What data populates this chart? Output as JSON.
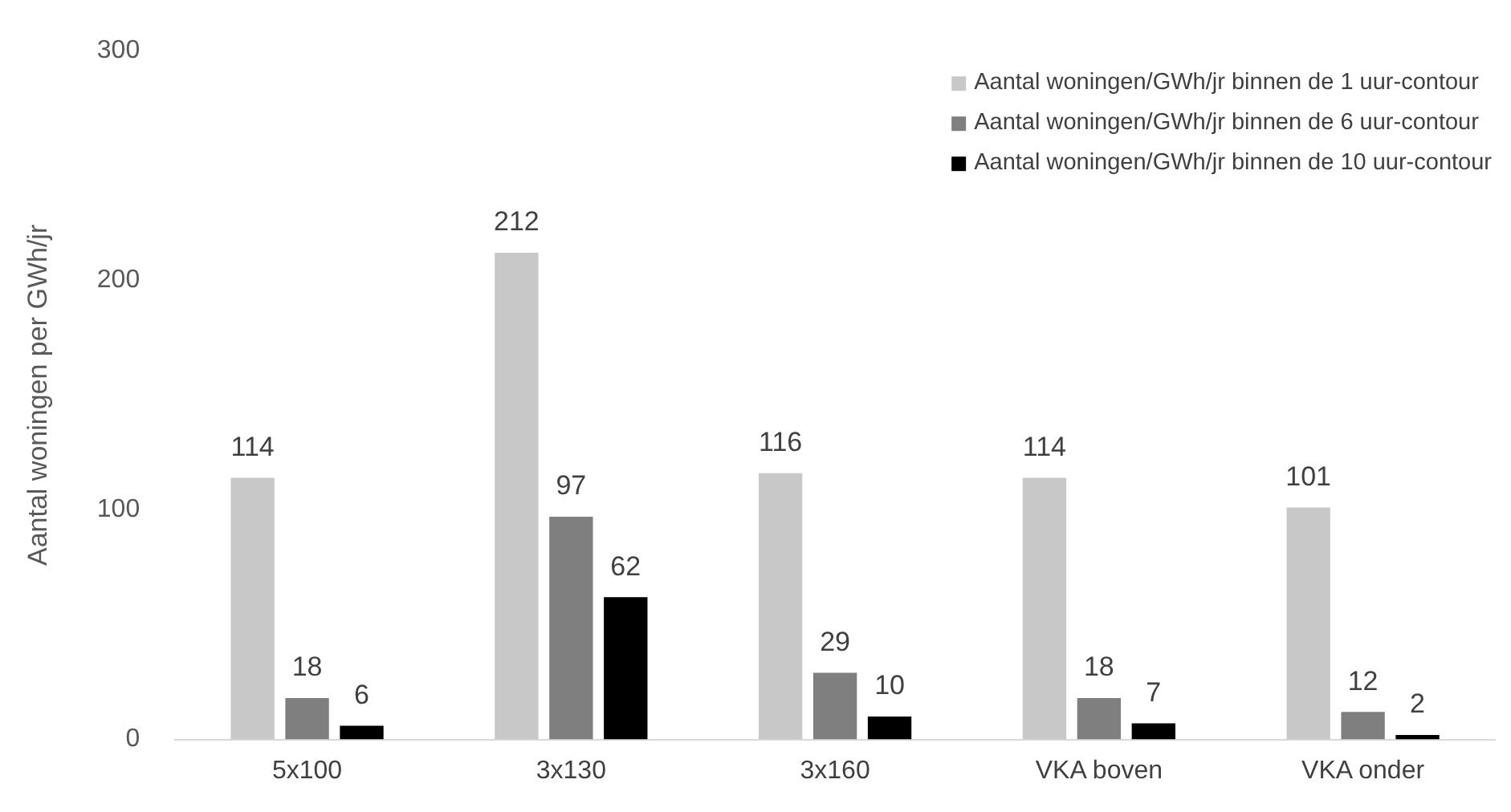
{
  "chart_data": {
    "type": "bar",
    "ylabel": "Aantal woningen per GWh/jr",
    "categories": [
      "5x100",
      "3x130",
      "3x160",
      "VKA boven",
      "VKA onder"
    ],
    "series": [
      {
        "name": "Aantal woningen/GWh/jr binnen de 1 uur-contour",
        "color": "#c8c8c8",
        "values": [
          114,
          212,
          116,
          114,
          101
        ]
      },
      {
        "name": "Aantal woningen/GWh/jr binnen de 6 uur-contour",
        "color": "#7f7f7f",
        "values": [
          18,
          97,
          29,
          18,
          12
        ]
      },
      {
        "name": "Aantal woningen/GWh/jr binnen de 10 uur-contour",
        "color": "#000000",
        "values": [
          6,
          62,
          10,
          7,
          2
        ]
      }
    ],
    "ylim": [
      0,
      300
    ],
    "yticks": [
      0,
      100,
      200,
      300
    ],
    "grid": false,
    "legend": "top right",
    "data_labels": true
  }
}
